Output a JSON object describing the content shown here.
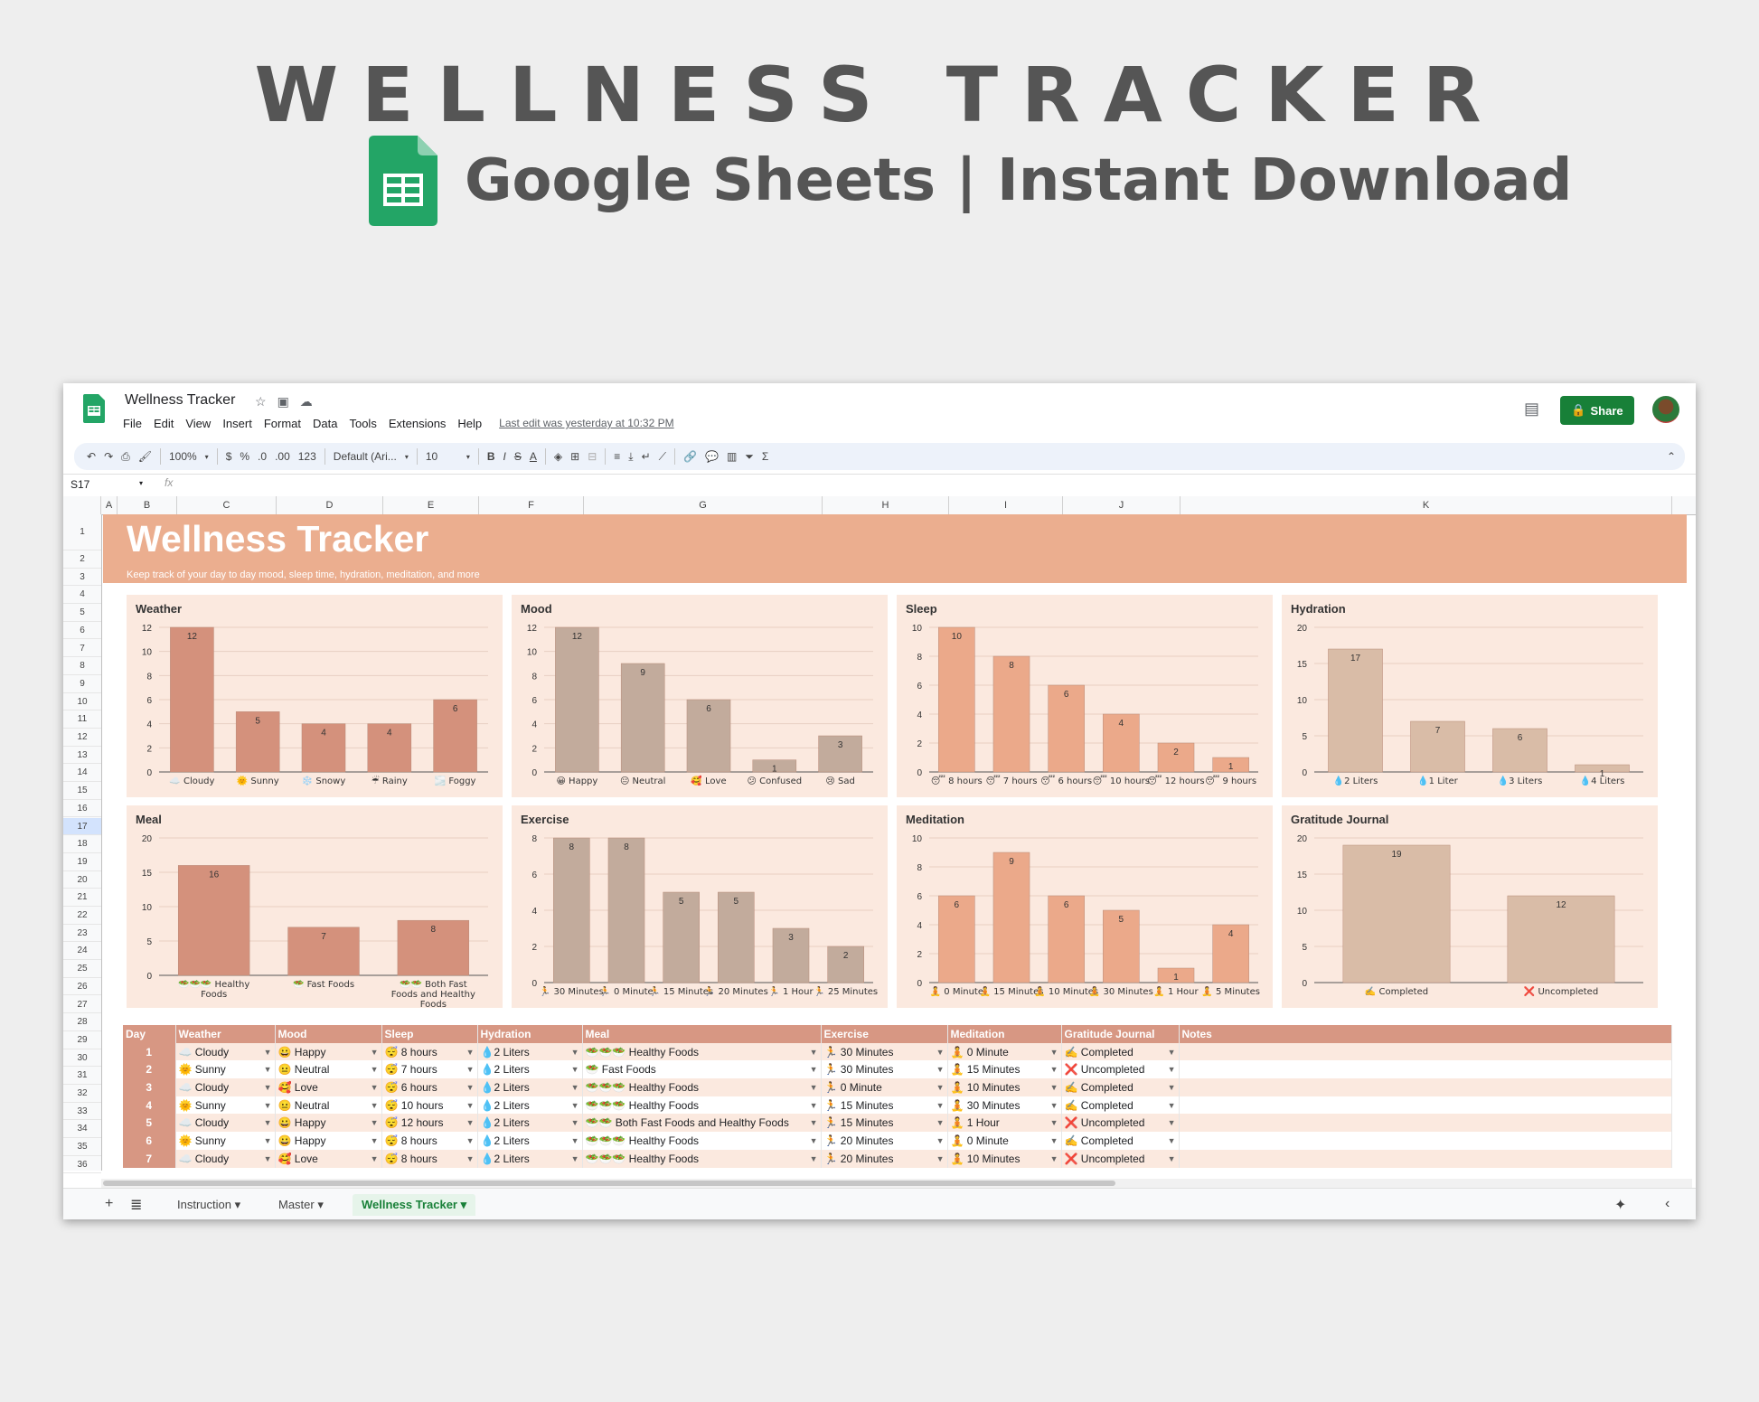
{
  "promo": {
    "title": "WELLNESS TRACKER",
    "subtitle": "Google Sheets | Instant Download"
  },
  "app": {
    "doc_title": "Wellness Tracker",
    "menu": [
      "File",
      "Edit",
      "View",
      "Insert",
      "Format",
      "Data",
      "Tools",
      "Extensions",
      "Help"
    ],
    "last_edit": "Last edit was yesterday at 10:32 PM",
    "share_label": "Share",
    "toolbar": {
      "zoom": "100%",
      "currency": "$",
      "percent": "%",
      "dec_decrease": ".0",
      "dec_increase": ".00",
      "number_format": "123",
      "font": "Default (Ari...",
      "font_size": "10"
    },
    "name_box": "S17",
    "fx": "fx",
    "columns": [
      "A",
      "B",
      "C",
      "D",
      "E",
      "F",
      "G",
      "H",
      "I",
      "J",
      "K"
    ],
    "rows": [
      "1",
      "2",
      "3",
      "4",
      "5",
      "6",
      "7",
      "8",
      "9",
      "10",
      "11",
      "12",
      "13",
      "14",
      "15",
      "16",
      "17",
      "18",
      "19",
      "20",
      "21",
      "22",
      "23",
      "24",
      "25",
      "26",
      "27",
      "28",
      "29",
      "30",
      "31",
      "32",
      "33",
      "34",
      "35",
      "36"
    ],
    "selected_row": "17",
    "tabs": [
      "Instruction",
      "Master",
      "Wellness Tracker"
    ],
    "active_tab": "Wellness Tracker"
  },
  "sheet": {
    "banner_title": "Wellness Tracker",
    "banner_subtitle": "Keep track of your day to day mood, sleep time, hydration, meditation, and more"
  },
  "colors": {
    "accent": "#ebae8f",
    "header": "#d79783",
    "chart_bg": "#fbe9df",
    "bar_rose": "#d4917c",
    "bar_taupe": "#c2ab9c",
    "bar_peach": "#eba98a",
    "bar_tan": "#d9bca7",
    "share": "#188038"
  },
  "chart_data": [
    {
      "type": "bar",
      "title": "Weather",
      "categories": [
        "☁️ Cloudy",
        "🌞 Sunny",
        "❄️ Snowy",
        "☔ Rainy",
        "🌫️ Foggy"
      ],
      "values": [
        12,
        5,
        4,
        4,
        6
      ],
      "ylim": [
        0,
        12
      ],
      "yticks": [
        0,
        2,
        4,
        6,
        8,
        10,
        12
      ],
      "color": "#d4917c"
    },
    {
      "type": "bar",
      "title": "Mood",
      "categories": [
        "😀 Happy",
        "😐 Neutral",
        "🥰 Love",
        "😕 Confused",
        "😢 Sad"
      ],
      "values": [
        12,
        9,
        6,
        1,
        3
      ],
      "ylim": [
        0,
        12
      ],
      "yticks": [
        0,
        2,
        4,
        6,
        8,
        10,
        12
      ],
      "color": "#c2ab9c"
    },
    {
      "type": "bar",
      "title": "Sleep",
      "categories": [
        "😴 8 hours",
        "😴 7 hours",
        "😴 6 hours",
        "😴 10 hours",
        "😴 12 hours",
        "😴 9 hours"
      ],
      "values": [
        10,
        8,
        6,
        4,
        2,
        1
      ],
      "ylim": [
        0,
        10
      ],
      "yticks": [
        0,
        2,
        4,
        6,
        8,
        10
      ],
      "color": "#eba98a"
    },
    {
      "type": "bar",
      "title": "Hydration",
      "categories": [
        "💧2 Liters",
        "💧1 Liter",
        "💧3 Liters",
        "💧4 Liters"
      ],
      "values": [
        17,
        7,
        6,
        1
      ],
      "ylim": [
        0,
        20
      ],
      "yticks": [
        0,
        5,
        10,
        15,
        20
      ],
      "color": "#d9bca7"
    },
    {
      "type": "bar",
      "title": "Meal",
      "categories": [
        "🥗🥗🥗 Healthy Foods",
        "🥗 Fast Foods",
        "🥗🥗 Both Fast Foods and Healthy Foods"
      ],
      "values": [
        16,
        7,
        8
      ],
      "ylim": [
        0,
        20
      ],
      "yticks": [
        0,
        5,
        10,
        15,
        20
      ],
      "color": "#d4917c"
    },
    {
      "type": "bar",
      "title": "Exercise",
      "categories": [
        "🏃 30 Minutes",
        "🏃 0 Minute",
        "🏃 15 Minutes",
        "🏃 20 Minutes",
        "🏃 1 Hour",
        "🏃 25 Minutes"
      ],
      "values": [
        8,
        8,
        5,
        5,
        3,
        2
      ],
      "ylim": [
        0,
        8
      ],
      "yticks": [
        0,
        2,
        4,
        6,
        8
      ],
      "color": "#c2ab9c"
    },
    {
      "type": "bar",
      "title": "Meditation",
      "categories": [
        "🧘 0 Minute",
        "🧘 15 Minutes",
        "🧘 10 Minutes",
        "🧘 30 Minutes",
        "🧘 1 Hour",
        "🧘 5 Minutes"
      ],
      "values": [
        6,
        9,
        6,
        5,
        1,
        4
      ],
      "ylim": [
        0,
        10
      ],
      "yticks": [
        0,
        2,
        4,
        6,
        8,
        10
      ],
      "color": "#eba98a"
    },
    {
      "type": "bar",
      "title": "Gratitude Journal",
      "categories": [
        "✍️ Completed",
        "❌ Uncompleted"
      ],
      "values": [
        19,
        12
      ],
      "ylim": [
        0,
        20
      ],
      "yticks": [
        0,
        5,
        10,
        15,
        20
      ],
      "color": "#d9bca7"
    }
  ],
  "table": {
    "headers": [
      "Day",
      "Weather",
      "Mood",
      "Sleep",
      "Hydration",
      "Meal",
      "Exercise",
      "Meditation",
      "Gratitude Journal",
      "Notes"
    ],
    "rows": [
      [
        "1",
        "☁️ Cloudy",
        "😀 Happy",
        "😴 8 hours",
        "💧2 Liters",
        "🥗🥗🥗 Healthy Foods",
        "🏃 30 Minutes",
        "🧘 0 Minute",
        "✍️ Completed",
        ""
      ],
      [
        "2",
        "🌞 Sunny",
        "😐 Neutral",
        "😴 7 hours",
        "💧2 Liters",
        "🥗 Fast Foods",
        "🏃 30 Minutes",
        "🧘 15 Minutes",
        "❌ Uncompleted",
        ""
      ],
      [
        "3",
        "☁️ Cloudy",
        "🥰 Love",
        "😴 6 hours",
        "💧2 Liters",
        "🥗🥗🥗 Healthy Foods",
        "🏃 0 Minute",
        "🧘 10 Minutes",
        "✍️ Completed",
        ""
      ],
      [
        "4",
        "🌞 Sunny",
        "😐 Neutral",
        "😴 10 hours",
        "💧2 Liters",
        "🥗🥗🥗 Healthy Foods",
        "🏃 15 Minutes",
        "🧘 30 Minutes",
        "✍️ Completed",
        ""
      ],
      [
        "5",
        "☁️ Cloudy",
        "😀 Happy",
        "😴 12 hours",
        "💧2 Liters",
        "🥗🥗 Both Fast Foods and Healthy Foods",
        "🏃 15 Minutes",
        "🧘 1 Hour",
        "❌ Uncompleted",
        ""
      ],
      [
        "6",
        "🌞 Sunny",
        "😀 Happy",
        "😴 8 hours",
        "💧2 Liters",
        "🥗🥗🥗 Healthy Foods",
        "🏃 20 Minutes",
        "🧘 0 Minute",
        "✍️ Completed",
        ""
      ],
      [
        "7",
        "☁️ Cloudy",
        "🥰 Love",
        "😴 8 hours",
        "💧2 Liters",
        "🥗🥗🥗 Healthy Foods",
        "🏃 20 Minutes",
        "🧘 10 Minutes",
        "❌ Uncompleted",
        ""
      ]
    ]
  }
}
